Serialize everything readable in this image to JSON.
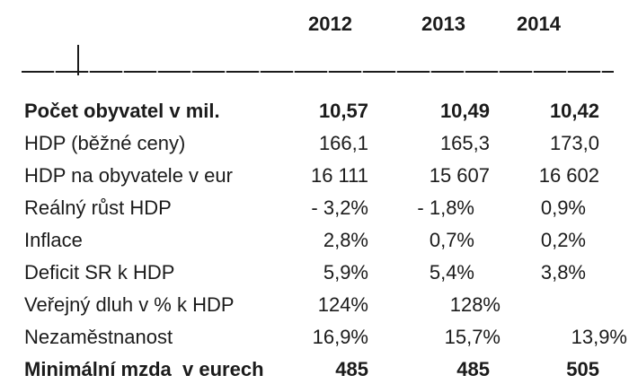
{
  "table": {
    "year_headers": [
      "2012",
      "2013",
      "2014"
    ],
    "rows": [
      {
        "label": "Počet obyvatel v mil.",
        "values": [
          "10,57",
          "10,49",
          "10,42"
        ],
        "bold": true
      },
      {
        "label": "HDP (běžné ceny)",
        "values": [
          "166,1",
          "165,3",
          "173,0"
        ],
        "bold": false
      },
      {
        "label": "HDP na obyvatele v eur",
        "values": [
          "16 111",
          "15 607",
          "16 602"
        ],
        "bold": false
      },
      {
        "label": "Reálný růst HDP",
        "values": [
          "- 3,2%",
          "- 1,8%",
          "0,9%"
        ],
        "bold": false
      },
      {
        "label": "Inflace",
        "values": [
          "2,8%",
          "0,7%",
          "0,2%"
        ],
        "bold": false
      },
      {
        "label": "Deficit SR k HDP",
        "values": [
          "5,9%",
          "5,4%",
          "3,8%"
        ],
        "bold": false
      },
      {
        "label": "Veřejný dluh v % k HDP",
        "values": [
          "124%",
          "128%",
          ""
        ],
        "bold": false
      },
      {
        "label": "Nezaměstnanost",
        "values": [
          "16,9%",
          "15,7%",
          "13,9%"
        ],
        "bold": false
      },
      {
        "label": "Minimální mzda  v eurech",
        "values": [
          "485",
          "485",
          "505"
        ],
        "bold": true
      }
    ]
  },
  "colors": {
    "text": "#1b1b1b",
    "background": "#ffffff"
  }
}
